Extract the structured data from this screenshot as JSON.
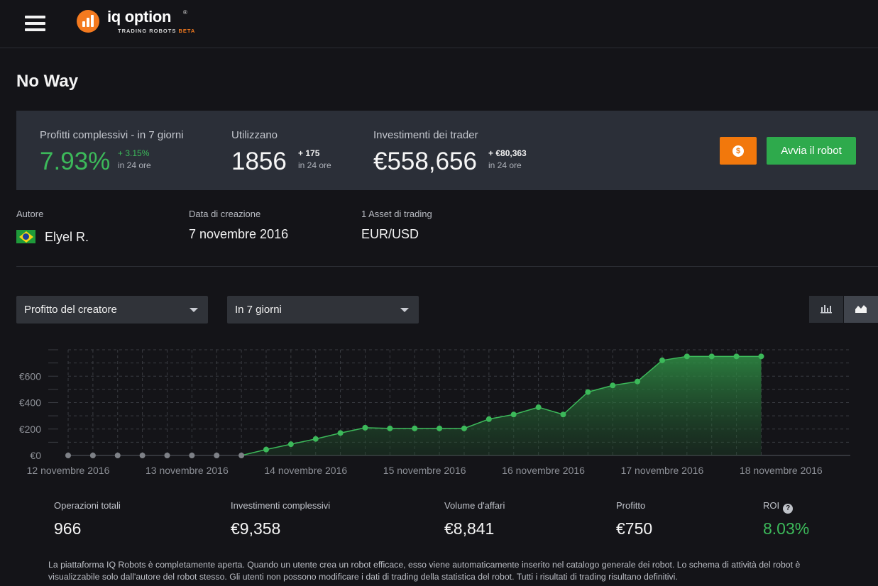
{
  "header": {
    "logo_text": "iq option",
    "logo_reg": "®",
    "logo_sub": "TRADING ROBOTS",
    "logo_beta": "BETA"
  },
  "page": {
    "title": "No Way"
  },
  "stats": {
    "profit": {
      "label": "Profitti complessivi - in 7 giorni",
      "value": "7.93%",
      "delta": "+ 3.15%",
      "delta_note": "in 24 ore"
    },
    "users": {
      "label": "Utilizzano",
      "value": "1856",
      "delta": "+ 175",
      "delta_note": "in 24 ore"
    },
    "investments": {
      "label": "Investimenti dei trader",
      "value": "€558,656",
      "delta": "+ €80,363",
      "delta_note": "in 24 ore"
    },
    "settings_icon": "dollar-coin-icon",
    "start_label": "Avvia il robot"
  },
  "meta": {
    "author_label": "Autore",
    "author_name": "Elyel R.",
    "author_flag": "brazil-flag-icon",
    "created_label": "Data di creazione",
    "created_value": "7 novembre 2016",
    "assets_label": "1 Asset di trading",
    "assets_value": "EUR/USD"
  },
  "filters": {
    "metric": "Profitto del creatore",
    "period": "In 7 giorni",
    "view_bar_icon": "bar-chart-icon",
    "view_area_icon": "area-chart-icon"
  },
  "chart_data": {
    "type": "area",
    "title": "",
    "xlabel": "",
    "ylabel": "",
    "y_ticks": [
      "€0",
      "€200",
      "€400",
      "€600"
    ],
    "ylim": [
      0,
      800
    ],
    "x_ticks": [
      "12 novembre 2016",
      "13 novembre 2016",
      "14 novembre 2016",
      "15 novembre 2016",
      "16 novembre 2016",
      "17 novembre 2016",
      "18 novembre 2016"
    ],
    "xlim": [
      "2016-11-12",
      "2016-11-18T14:00"
    ],
    "colors": {
      "line": "#3cb95a",
      "fill": "#2f8f45",
      "inactive_point": "#7e8187",
      "grid": "#3a3c42"
    },
    "series": [
      {
        "points": [
          {
            "x": "2016-11-12T00:00",
            "y": 0
          },
          {
            "x": "2016-11-12T05:00",
            "y": 0
          },
          {
            "x": "2016-11-12T10:00",
            "y": 0
          },
          {
            "x": "2016-11-12T15:00",
            "y": 0
          },
          {
            "x": "2016-11-12T20:00",
            "y": 0
          },
          {
            "x": "2016-11-13T01:00",
            "y": 0
          },
          {
            "x": "2016-11-13T06:00",
            "y": 0
          },
          {
            "x": "2016-11-13T11:00",
            "y": 0
          },
          {
            "x": "2016-11-13T16:00",
            "y": 45
          },
          {
            "x": "2016-11-13T21:00",
            "y": 85
          },
          {
            "x": "2016-11-14T02:00",
            "y": 125
          },
          {
            "x": "2016-11-14T07:00",
            "y": 170
          },
          {
            "x": "2016-11-14T12:00",
            "y": 210
          },
          {
            "x": "2016-11-14T17:00",
            "y": 205
          },
          {
            "x": "2016-11-14T22:00",
            "y": 205
          },
          {
            "x": "2016-11-15T03:00",
            "y": 205
          },
          {
            "x": "2016-11-15T08:00",
            "y": 205
          },
          {
            "x": "2016-11-15T13:00",
            "y": 275
          },
          {
            "x": "2016-11-15T18:00",
            "y": 310
          },
          {
            "x": "2016-11-15T23:00",
            "y": 365
          },
          {
            "x": "2016-11-16T04:00",
            "y": 310
          },
          {
            "x": "2016-11-16T09:00",
            "y": 480
          },
          {
            "x": "2016-11-16T14:00",
            "y": 530
          },
          {
            "x": "2016-11-16T19:00",
            "y": 560
          },
          {
            "x": "2016-11-17T00:00",
            "y": 720
          },
          {
            "x": "2016-11-17T05:00",
            "y": 750
          },
          {
            "x": "2016-11-17T10:00",
            "y": 750
          },
          {
            "x": "2016-11-17T15:00",
            "y": 750
          },
          {
            "x": "2016-11-17T20:00",
            "y": 750
          }
        ]
      }
    ]
  },
  "summary": {
    "ops_label": "Operazioni totali",
    "ops_value": "966",
    "invest_label": "Investimenti complessivi",
    "invest_value": "€9,358",
    "volume_label": "Volume d'affari",
    "volume_value": "€8,841",
    "profit_label": "Profitto",
    "profit_value": "€750",
    "roi_label": "ROI",
    "roi_help": "?",
    "roi_value": "8.03%"
  },
  "footnote": "La piattaforma IQ Robots è completamente aperta. Quando un utente crea un robot efficace, esso viene automaticamente inserito nel catalogo generale dei robot. Lo schema di attività del robot è visualizzabile solo dall'autore del robot stesso. Gli utenti non possono modificare i dati di trading della statistica del robot. Tutti i risultati di trading risultano definitivi."
}
